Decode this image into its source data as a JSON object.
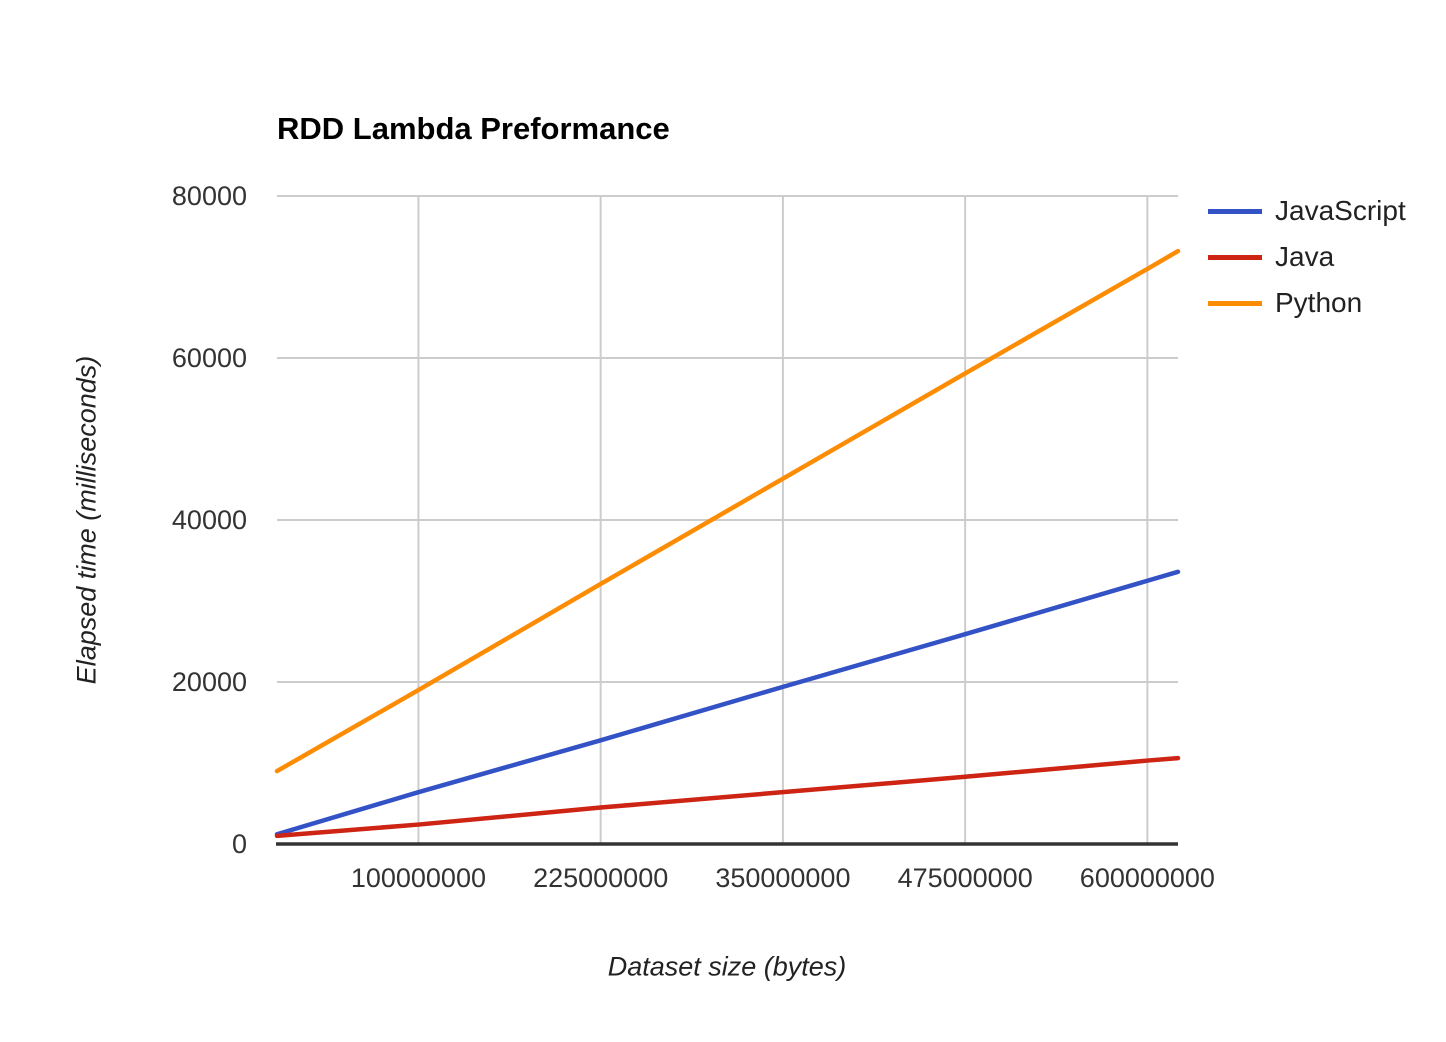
{
  "chart_data": {
    "type": "line",
    "title": "RDD Lambda Preformance",
    "xlabel": "Dataset size (bytes)",
    "ylabel": "Elapsed time (milliseconds)",
    "xlim": [
      3000000,
      621000000
    ],
    "ylim": [
      0,
      80000
    ],
    "x_ticks": [
      100000000,
      225000000,
      350000000,
      475000000,
      600000000
    ],
    "y_ticks": [
      0,
      20000,
      40000,
      60000,
      80000
    ],
    "grid": true,
    "legend_position": "right",
    "x": [
      3000000,
      100000000,
      225000000,
      350000000,
      475000000,
      600000000,
      621000000
    ],
    "series": [
      {
        "name": "JavaScript",
        "color": "#3352c6",
        "values": [
          1200,
          6400,
          12800,
          19400,
          25900,
          32500,
          33600
        ]
      },
      {
        "name": "Java",
        "color": "#ce2413",
        "values": [
          1000,
          2400,
          4500,
          6400,
          8300,
          10300,
          10600
        ]
      },
      {
        "name": "Python",
        "color": "#fd8c05",
        "values": [
          9000,
          19000,
          32100,
          45100,
          58100,
          71000,
          73200
        ]
      }
    ],
    "colors": {
      "gridline": "#cccccc",
      "axis_line": "#333333",
      "tick_label": "#333333",
      "title": "#000000"
    }
  }
}
